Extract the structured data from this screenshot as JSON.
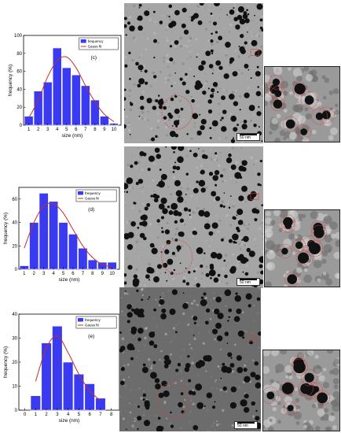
{
  "chart_data": [
    {
      "type": "bar",
      "panel_label": "(c)",
      "categories": [
        "1",
        "2",
        "3",
        "4",
        "5",
        "6",
        "7",
        "8",
        "9",
        "10"
      ],
      "values": [
        10,
        38,
        48,
        86,
        64,
        56,
        44,
        28,
        10,
        2
      ],
      "fit": [
        8,
        28,
        54,
        72,
        76,
        64,
        44,
        26,
        12,
        4
      ],
      "xlabel": "size (nm)",
      "ylabel": "frequency (%)",
      "xticks": [
        "1",
        "2",
        "3",
        "4",
        "5",
        "6",
        "7",
        "8",
        "9",
        "10"
      ],
      "yticks": [
        "0",
        "20",
        "40",
        "60",
        "80",
        "100"
      ],
      "ylim": [
        0,
        100
      ],
      "legend": [
        "frequency",
        "Gauss fit"
      ],
      "bar_color": "#3a3af0",
      "fit_color": "#c0302a"
    },
    {
      "type": "bar",
      "panel_label": "(d)",
      "categories": [
        "1",
        "2",
        "3",
        "4",
        "5",
        "6",
        "7",
        "8",
        "9",
        "10"
      ],
      "values": [
        3,
        40,
        65,
        58,
        40,
        30,
        18,
        8,
        6,
        6
      ],
      "fit": [
        18,
        40,
        54,
        56,
        48,
        34,
        20,
        10,
        4,
        2
      ],
      "xlabel": "size (nm)",
      "ylabel": "frequency (%)",
      "xticks": [
        "1",
        "2",
        "3",
        "4",
        "5",
        "6",
        "7",
        "8",
        "9",
        "10"
      ],
      "yticks": [
        "0",
        "20",
        "40",
        "60"
      ],
      "ylim": [
        0,
        70
      ],
      "legend": [
        "frequency",
        "Gauss fit"
      ],
      "bar_color": "#3a3af0",
      "fit_color": "#c0302a"
    },
    {
      "type": "bar",
      "panel_label": "(e)",
      "categories": [
        "1",
        "2",
        "3",
        "4",
        "5",
        "6",
        "7"
      ],
      "values": [
        6,
        28,
        35,
        20,
        15,
        11,
        5
      ],
      "fit": [
        12,
        26,
        31,
        24,
        15,
        8,
        4
      ],
      "xlabel": "size (nm)",
      "ylabel": "frequency (%)",
      "xticks": [
        "0",
        "1",
        "2",
        "3",
        "4",
        "5",
        "6",
        "7",
        "8"
      ],
      "yticks": [
        "0",
        "10",
        "20",
        "30",
        "40"
      ],
      "ylim": [
        0,
        40
      ],
      "legend": [
        "frequency",
        "Gauss fit"
      ],
      "bar_color": "#3a3af0",
      "fit_color": "#c0302a"
    }
  ],
  "micrographs": {
    "scale_labels": [
      "50 nm",
      "50 nm",
      "50 nm"
    ],
    "zoom_colors": {
      "circle": "#e04040",
      "background": "#8c8c8c"
    }
  }
}
